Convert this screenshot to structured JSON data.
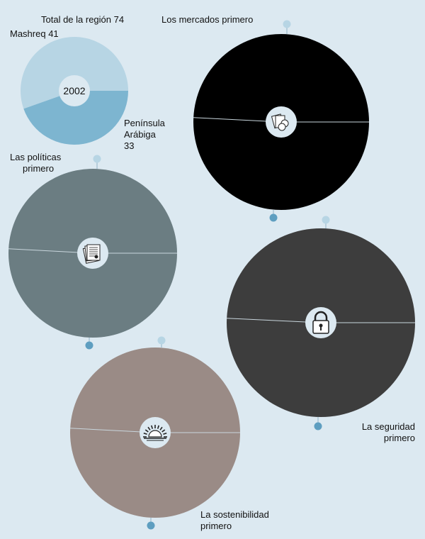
{
  "chart_data": [
    {
      "type": "pie",
      "year_label": "2002",
      "total_label": "Total de la región 74",
      "slices": [
        {
          "label": "Mashreq 41",
          "value": 41,
          "color": "#b7d5e4"
        },
        {
          "label": "Península Arábiga 33",
          "label_lines": [
            "Península",
            "Arábiga",
            "33"
          ],
          "value": 33,
          "color": "#7db5d0"
        }
      ]
    },
    {
      "type": "pie",
      "scenarios": [
        {
          "id": "mercados",
          "label_lines": [
            "Los mercados primero"
          ],
          "icon": "documents-stack-icon",
          "fill": "#000000",
          "split_fraction": 0.49
        },
        {
          "id": "politicas",
          "label_lines": [
            "Las políticas",
            "primero"
          ],
          "icon": "document-certificate-icon",
          "fill": "#6b7d82",
          "split_fraction": 0.49
        },
        {
          "id": "seguridad",
          "label_lines": [
            "La seguridad",
            "primero"
          ],
          "icon": "padlock-icon",
          "fill": "#3d3d3d",
          "split_fraction": 0.49
        },
        {
          "id": "sostenibilidad",
          "label_lines": [
            "La sostenibilidad",
            "primero"
          ],
          "icon": "sunrise-icon",
          "fill": "#9a8b86",
          "split_fraction": 0.49
        }
      ]
    }
  ],
  "colors": {
    "background": "#dce9f1",
    "marker_top": "#b7d5e4",
    "marker_bottom": "#5e9ec0",
    "center_disc": "#dce9f1",
    "divider": "#c9d6dd"
  }
}
